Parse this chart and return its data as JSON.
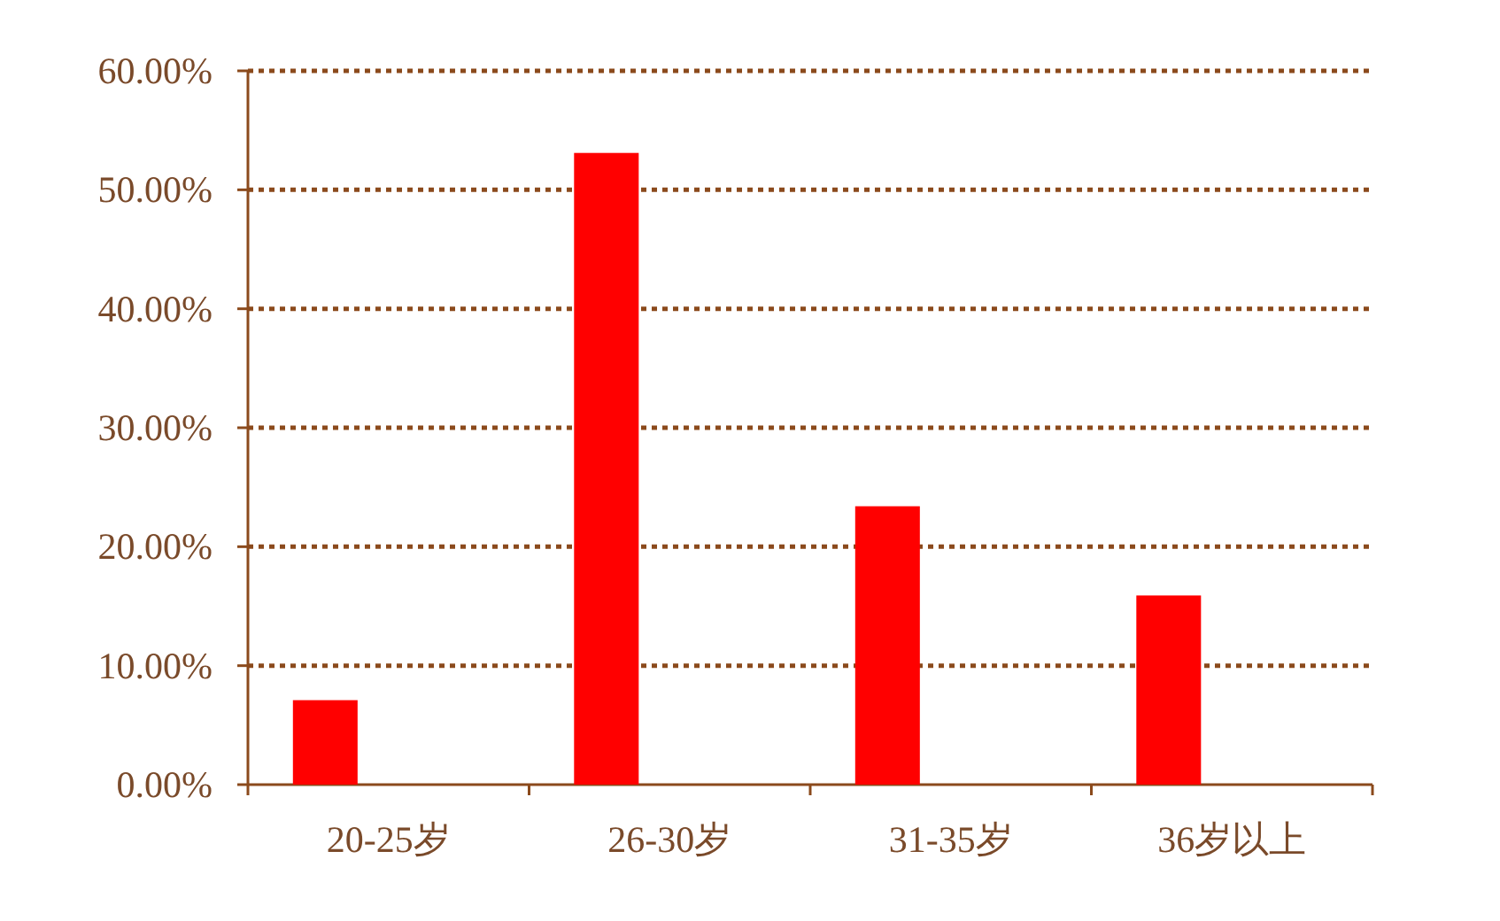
{
  "chart_data": {
    "type": "bar",
    "categories": [
      "20-25岁",
      "26-30岁",
      "31-35岁",
      "36岁以上"
    ],
    "values": [
      7.1,
      53.1,
      23.4,
      15.9
    ],
    "color": "#ff0000",
    "ylim": [
      0,
      60
    ],
    "yticks": [
      {
        "value": 0,
        "label": "0.00%"
      },
      {
        "value": 10,
        "label": "10.00%"
      },
      {
        "value": 20,
        "label": "20.00%"
      },
      {
        "value": 30,
        "label": "30.00%"
      },
      {
        "value": 40,
        "label": "40.00%"
      },
      {
        "value": 50,
        "label": "50.00%"
      },
      {
        "value": 60,
        "label": "60.00%"
      }
    ],
    "grid": "y"
  }
}
